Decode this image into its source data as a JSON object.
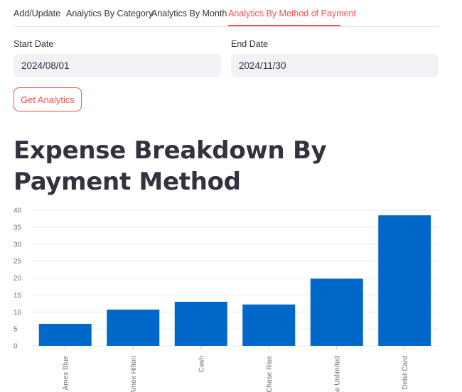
{
  "tabs": [
    {
      "label": "Add/Update",
      "active": false
    },
    {
      "label": "Analytics By Category",
      "active": false
    },
    {
      "label": "Analytics By Month",
      "active": false
    },
    {
      "label": "Analytics By Method of Payment",
      "active": true
    }
  ],
  "form": {
    "start_label": "Start Date",
    "start_value": "2024/08/01",
    "end_label": "End Date",
    "end_value": "2024/11/30",
    "button_label": "Get Analytics"
  },
  "heading": "Expense Breakdown By Payment Method",
  "colors": {
    "accent": "#ff4b4b",
    "bar": "#0068c9",
    "input_bg": "#f0f2f6",
    "text": "#31333f"
  },
  "chart_data": {
    "type": "bar",
    "categories": [
      "Amex Blue",
      "Amex Hilton",
      "Cash",
      "Chase Rise",
      "Chase Unlimited",
      "Debit Card"
    ],
    "values": [
      6.5,
      10.7,
      13,
      12.2,
      19.8,
      38.5
    ],
    "yticks": [
      0,
      5,
      10,
      15,
      20,
      25,
      30,
      35,
      40
    ],
    "ylim": [
      0,
      40
    ],
    "grid": true
  }
}
